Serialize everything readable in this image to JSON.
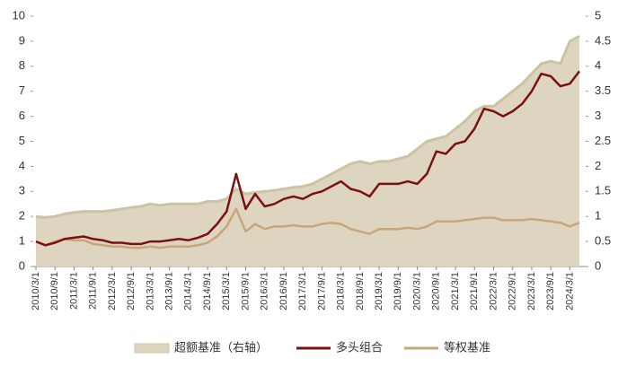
{
  "chart_data": {
    "type": "line",
    "x": [
      "2010/3/1",
      "2010/6/1",
      "2010/9/1",
      "2010/12/1",
      "2011/3/1",
      "2011/6/1",
      "2011/9/1",
      "2011/12/1",
      "2012/3/1",
      "2012/6/1",
      "2012/9/1",
      "2012/12/1",
      "2013/3/1",
      "2013/6/1",
      "2013/9/1",
      "2013/12/1",
      "2014/3/1",
      "2014/6/1",
      "2014/9/1",
      "2014/12/1",
      "2015/3/1",
      "2015/6/1",
      "2015/9/1",
      "2015/12/1",
      "2016/3/1",
      "2016/6/1",
      "2016/9/1",
      "2016/12/1",
      "2017/3/1",
      "2017/6/1",
      "2017/9/1",
      "2017/12/1",
      "2018/3/1",
      "2018/6/1",
      "2018/9/1",
      "2018/12/1",
      "2019/3/1",
      "2019/6/1",
      "2019/9/1",
      "2019/12/1",
      "2020/3/1",
      "2020/6/1",
      "2020/9/1",
      "2020/12/1",
      "2021/3/1",
      "2021/6/1",
      "2021/9/1",
      "2021/12/1",
      "2022/3/1",
      "2022/6/1",
      "2022/9/1",
      "2022/12/1",
      "2023/3/1",
      "2023/6/1",
      "2023/9/1",
      "2023/12/1",
      "2024/3/1",
      "2024/6/1"
    ],
    "xlim": [
      "2010/3/1",
      "2024/6/1"
    ],
    "xticks": [
      "2010/3/1",
      "2010/9/1",
      "2011/3/1",
      "2011/9/1",
      "2012/3/1",
      "2012/9/1",
      "2013/3/1",
      "2013/9/1",
      "2014/3/1",
      "2014/9/1",
      "2015/3/1",
      "2015/9/1",
      "2016/3/1",
      "2016/9/1",
      "2017/3/1",
      "2017/9/1",
      "2018/3/1",
      "2018/9/1",
      "2019/3/1",
      "2019/9/1",
      "2020/3/1",
      "2020/9/1",
      "2021/3/1",
      "2021/9/1",
      "2022/3/1",
      "2022/9/1",
      "2023/3/1",
      "2023/9/1",
      "2024/3/1"
    ],
    "ylim": [
      0,
      10
    ],
    "yticks": [
      0,
      1,
      2,
      3,
      4,
      5,
      6,
      7,
      8,
      9,
      10
    ],
    "y2lim": [
      0,
      5
    ],
    "y2ticks": [
      0,
      0.5,
      1,
      1.5,
      2,
      2.5,
      3,
      3.5,
      4,
      4.5,
      5
    ],
    "legend": "bottom",
    "series": [
      {
        "name": "超额基准（右轴）",
        "color": "#ddd5bf",
        "axis": "y2",
        "area": true,
        "values": [
          1.0,
          0.98,
          1.0,
          1.05,
          1.08,
          1.1,
          1.1,
          1.1,
          1.12,
          1.15,
          1.18,
          1.2,
          1.25,
          1.22,
          1.25,
          1.25,
          1.25,
          1.25,
          1.3,
          1.3,
          1.35,
          1.55,
          1.45,
          1.48,
          1.5,
          1.52,
          1.55,
          1.58,
          1.6,
          1.65,
          1.75,
          1.85,
          1.95,
          2.05,
          2.1,
          2.05,
          2.1,
          2.1,
          2.15,
          2.2,
          2.35,
          2.5,
          2.55,
          2.6,
          2.75,
          2.9,
          3.1,
          3.2,
          3.2,
          3.35,
          3.5,
          3.65,
          3.85,
          4.05,
          4.1,
          4.05,
          4.5,
          4.6
        ]
      },
      {
        "name": "多头组合",
        "color": "#7a1010",
        "values": [
          1.0,
          0.85,
          0.95,
          1.1,
          1.15,
          1.2,
          1.1,
          1.05,
          0.95,
          0.95,
          0.9,
          0.9,
          1.0,
          1.0,
          1.05,
          1.1,
          1.05,
          1.15,
          1.3,
          1.7,
          2.2,
          3.7,
          2.3,
          2.9,
          2.4,
          2.5,
          2.7,
          2.8,
          2.7,
          2.9,
          3.0,
          3.2,
          3.4,
          3.1,
          3.0,
          2.8,
          3.3,
          3.3,
          3.3,
          3.4,
          3.3,
          3.7,
          4.6,
          4.5,
          4.9,
          5.0,
          5.5,
          6.3,
          6.2,
          6.0,
          6.2,
          6.5,
          7.0,
          7.7,
          7.6,
          7.2,
          7.3,
          7.8
        ]
      },
      {
        "name": "等权基准",
        "color": "#c9a57a",
        "values": [
          1.0,
          0.85,
          1.0,
          1.1,
          1.05,
          1.05,
          0.9,
          0.85,
          0.8,
          0.8,
          0.75,
          0.75,
          0.8,
          0.75,
          0.8,
          0.8,
          0.8,
          0.85,
          0.95,
          1.2,
          1.6,
          2.3,
          1.4,
          1.7,
          1.5,
          1.6,
          1.6,
          1.65,
          1.6,
          1.6,
          1.7,
          1.75,
          1.7,
          1.5,
          1.4,
          1.3,
          1.5,
          1.5,
          1.5,
          1.55,
          1.5,
          1.6,
          1.8,
          1.8,
          1.8,
          1.85,
          1.9,
          1.95,
          1.95,
          1.85,
          1.85,
          1.85,
          1.9,
          1.85,
          1.8,
          1.75,
          1.6,
          1.75
        ]
      }
    ]
  }
}
